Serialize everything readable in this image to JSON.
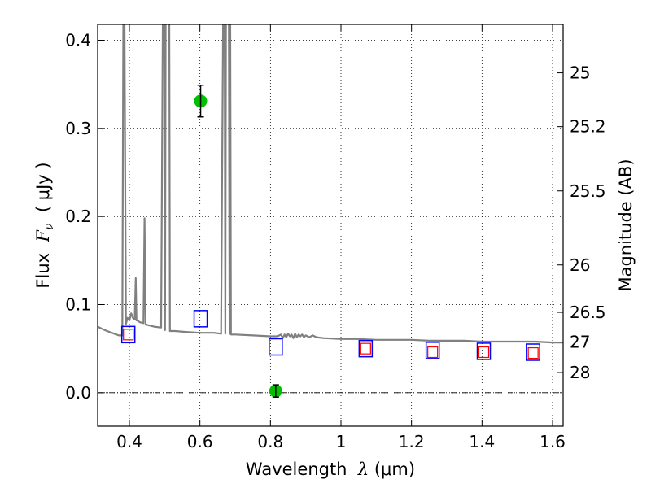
{
  "chart_data": {
    "type": "scatter",
    "xlabel": "Wavelength  λ (μm)",
    "ylabel": "Flux  F_ν  ( μJy )",
    "ylabel_parts": {
      "prefix": "Flux  ",
      "symbol": "F",
      "subscript": "ν",
      "suffix": "  ( μJy )"
    },
    "xlabel_parts": {
      "prefix": "Wavelength  ",
      "symbol": "λ",
      "suffix": " (μm)"
    },
    "ylabel_right": "Magnitude (AB)",
    "xlim": [
      0.31,
      1.63
    ],
    "ylim": [
      -0.038,
      0.418
    ],
    "grid": true,
    "xticks": [
      0.4,
      0.6,
      0.8,
      1.0,
      1.2,
      1.4,
      1.6
    ],
    "xtick_labels": [
      "0.4",
      "0.6",
      "0.8",
      "1",
      "1.2",
      "1.4",
      "1.6"
    ],
    "yticks": [
      0.0,
      0.1,
      0.2,
      0.3,
      0.4
    ],
    "ytick_labels": [
      "0.0",
      "0.1",
      "0.2",
      "0.3",
      "0.4"
    ],
    "magnitude_ticks": [
      {
        "label": "25",
        "flux": 0.363
      },
      {
        "label": "25.2",
        "flux": 0.302
      },
      {
        "label": "25.5",
        "flux": 0.229
      },
      {
        "label": "26",
        "flux": 0.145
      },
      {
        "label": "26.5",
        "flux": 0.0912
      },
      {
        "label": "27",
        "flux": 0.0575
      },
      {
        "label": "28",
        "flux": 0.0229
      }
    ],
    "series": [
      {
        "name": "model-spectrum",
        "style": "line",
        "color": "#808080",
        "x": [
          0.31,
          0.33,
          0.35,
          0.37,
          0.38,
          0.383,
          0.386,
          0.39,
          0.395,
          0.4,
          0.405,
          0.41,
          0.415,
          0.418,
          0.42,
          0.422,
          0.43,
          0.44,
          0.443,
          0.446,
          0.45,
          0.47,
          0.49,
          0.495,
          0.497,
          0.499,
          0.501,
          0.503,
          0.505,
          0.507,
          0.509,
          0.511,
          0.513,
          0.515,
          0.53,
          0.56,
          0.6,
          0.64,
          0.66,
          0.666,
          0.668,
          0.67,
          0.672,
          0.674,
          0.676,
          0.68,
          0.682,
          0.684,
          0.686,
          0.688,
          0.7,
          0.75,
          0.8,
          0.82,
          0.83,
          0.835,
          0.84,
          0.845,
          0.85,
          0.855,
          0.86,
          0.865,
          0.87,
          0.875,
          0.88,
          0.885,
          0.89,
          0.895,
          0.9,
          0.91,
          0.92,
          0.93,
          0.95,
          1.0,
          1.05,
          1.1,
          1.15,
          1.2,
          1.25,
          1.3,
          1.35,
          1.4,
          1.45,
          1.5,
          1.55,
          1.6,
          1.63
        ],
        "y": [
          0.075,
          0.071,
          0.068,
          0.065,
          0.065,
          0.44,
          0.44,
          0.078,
          0.085,
          0.082,
          0.09,
          0.085,
          0.083,
          0.13,
          0.082,
          0.082,
          0.08,
          0.079,
          0.198,
          0.078,
          0.077,
          0.075,
          0.074,
          0.44,
          0.44,
          0.44,
          0.071,
          0.44,
          0.44,
          0.44,
          0.44,
          0.44,
          0.44,
          0.07,
          0.07,
          0.069,
          0.068,
          0.068,
          0.067,
          0.44,
          0.44,
          0.44,
          0.067,
          0.44,
          0.44,
          0.44,
          0.44,
          0.067,
          0.44,
          0.066,
          0.066,
          0.065,
          0.064,
          0.064,
          0.066,
          0.062,
          0.066,
          0.063,
          0.067,
          0.064,
          0.066,
          0.062,
          0.067,
          0.063,
          0.066,
          0.064,
          0.066,
          0.063,
          0.065,
          0.063,
          0.065,
          0.063,
          0.062,
          0.061,
          0.061,
          0.06,
          0.06,
          0.06,
          0.059,
          0.059,
          0.059,
          0.058,
          0.058,
          0.058,
          0.058,
          0.057,
          0.057
        ]
      },
      {
        "name": "observed-photometry",
        "style": "point-errorbar",
        "color": "#00c000",
        "points": [
          {
            "x": 0.602,
            "y": 0.331,
            "yerr": 0.018
          },
          {
            "x": 0.815,
            "y": 0.002,
            "yerr": 0.007
          }
        ]
      },
      {
        "name": "model-photometry",
        "style": "open-square",
        "color": "#0000ff",
        "points": [
          {
            "x": 0.397,
            "y": 0.066
          },
          {
            "x": 0.602,
            "y": 0.084
          },
          {
            "x": 0.815,
            "y": 0.052
          },
          {
            "x": 1.07,
            "y": 0.05
          },
          {
            "x": 1.26,
            "y": 0.048
          },
          {
            "x": 1.405,
            "y": 0.047
          },
          {
            "x": 1.545,
            "y": 0.046
          }
        ]
      },
      {
        "name": "filter-flux",
        "style": "small-open-square",
        "color": "#ff0000",
        "points": [
          {
            "x": 0.397,
            "y": 0.066
          },
          {
            "x": 1.07,
            "y": 0.05
          },
          {
            "x": 1.26,
            "y": 0.046
          },
          {
            "x": 1.405,
            "y": 0.046
          },
          {
            "x": 1.545,
            "y": 0.045
          }
        ]
      }
    ]
  }
}
